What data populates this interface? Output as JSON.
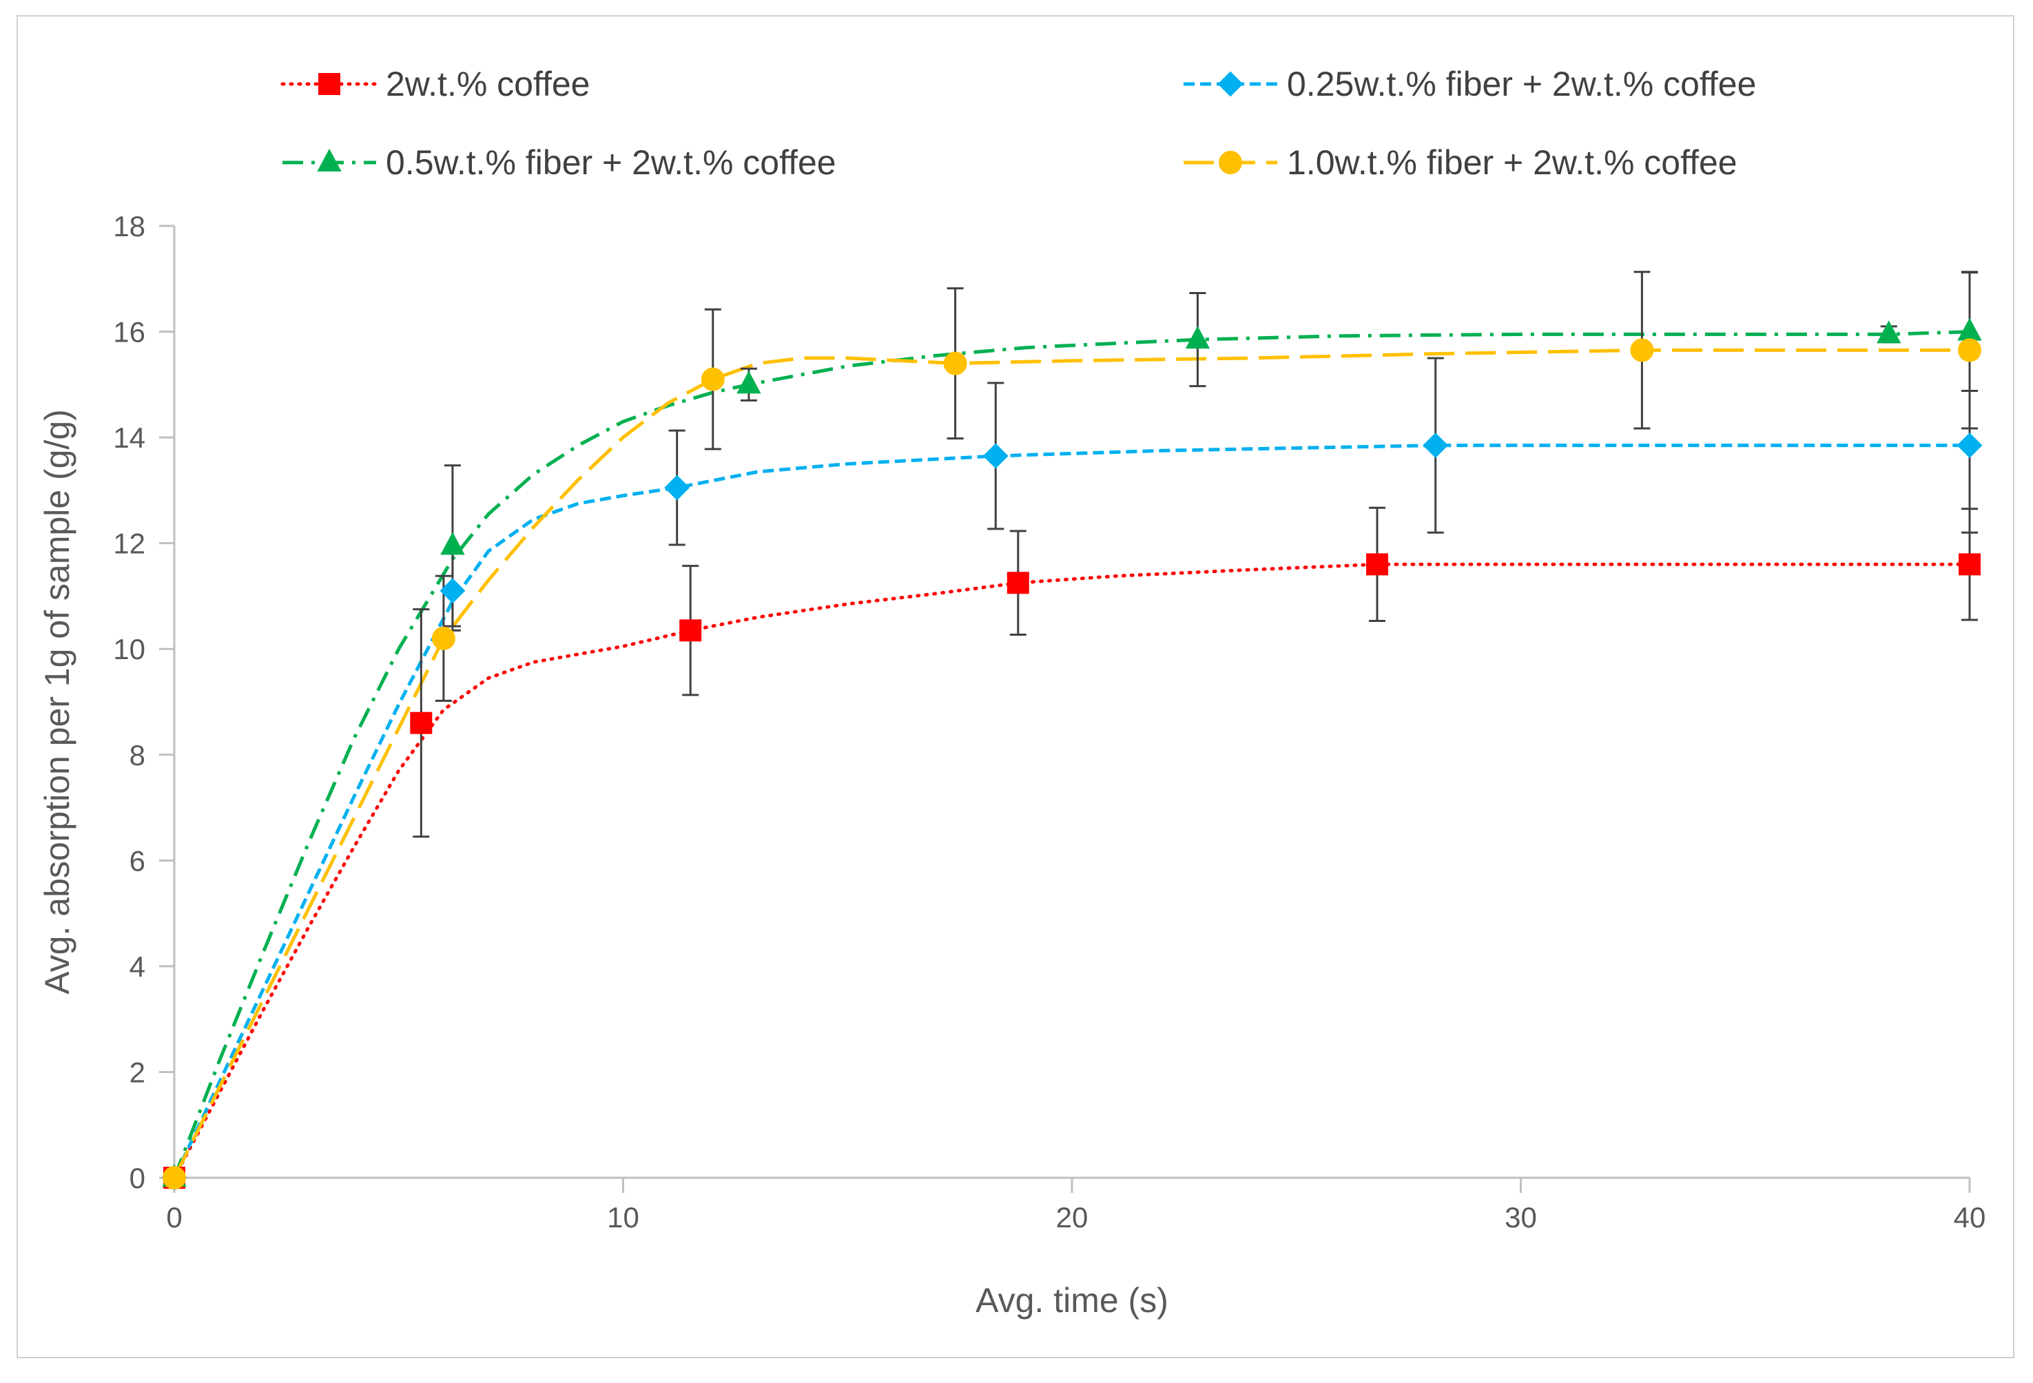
{
  "chart_data": {
    "type": "line",
    "title": "",
    "xlabel": "Avg. time (s)",
    "ylabel": "Avg. absorption per 1g of sample (g/g)",
    "xlim": [
      0,
      40
    ],
    "ylim": [
      0,
      18
    ],
    "xticks": [
      0,
      10,
      20,
      30,
      40
    ],
    "yticks": [
      0,
      2,
      4,
      6,
      8,
      10,
      12,
      14,
      16,
      18
    ],
    "grid": false,
    "legend_position": "top",
    "series": [
      {
        "name": "2w.t.% coffee",
        "color": "#ff0000",
        "line_style": "dotted",
        "marker": "square",
        "points": [
          {
            "x": 0,
            "y": 0
          },
          {
            "x": 5.5,
            "y": 8.6,
            "err": 2.15
          },
          {
            "x": 11.5,
            "y": 10.35,
            "err": 1.22
          },
          {
            "x": 18.8,
            "y": 11.25,
            "err": 0.98
          },
          {
            "x": 26.8,
            "y": 11.6,
            "err": 1.07
          },
          {
            "x": 40,
            "y": 11.6,
            "err": 1.05
          }
        ],
        "curve": [
          {
            "x": 0,
            "y": 0
          },
          {
            "x": 1,
            "y": 1.6
          },
          {
            "x": 2,
            "y": 3.2
          },
          {
            "x": 3,
            "y": 4.75
          },
          {
            "x": 4,
            "y": 6.25
          },
          {
            "x": 5,
            "y": 7.7
          },
          {
            "x": 6,
            "y": 8.85
          },
          {
            "x": 7,
            "y": 9.45
          },
          {
            "x": 8,
            "y": 9.75
          },
          {
            "x": 9,
            "y": 9.9
          },
          {
            "x": 10,
            "y": 10.05
          },
          {
            "x": 11.5,
            "y": 10.35
          },
          {
            "x": 13,
            "y": 10.6
          },
          {
            "x": 15,
            "y": 10.85
          },
          {
            "x": 17,
            "y": 11.05
          },
          {
            "x": 18.8,
            "y": 11.25
          },
          {
            "x": 21,
            "y": 11.38
          },
          {
            "x": 24,
            "y": 11.5
          },
          {
            "x": 26.8,
            "y": 11.6
          },
          {
            "x": 30,
            "y": 11.6
          },
          {
            "x": 35,
            "y": 11.6
          },
          {
            "x": 40,
            "y": 11.6
          }
        ]
      },
      {
        "name": "0.25w.t.% fiber + 2w.t.% coffee",
        "color": "#00b0f0",
        "line_style": "short-dash",
        "marker": "diamond",
        "points": [
          {
            "x": 0,
            "y": 0
          },
          {
            "x": 6.2,
            "y": 11.1,
            "err": 0.75
          },
          {
            "x": 11.2,
            "y": 13.05,
            "err": 1.08
          },
          {
            "x": 18.3,
            "y": 13.65,
            "err": 1.38
          },
          {
            "x": 28.1,
            "y": 13.85,
            "err": 1.65
          },
          {
            "x": 40,
            "y": 13.85,
            "err": 1.65
          }
        ],
        "curve": [
          {
            "x": 0,
            "y": 0
          },
          {
            "x": 1,
            "y": 1.8
          },
          {
            "x": 2,
            "y": 3.6
          },
          {
            "x": 3,
            "y": 5.4
          },
          {
            "x": 4,
            "y": 7.2
          },
          {
            "x": 5,
            "y": 8.95
          },
          {
            "x": 6.2,
            "y": 10.9
          },
          {
            "x": 7,
            "y": 11.85
          },
          {
            "x": 8,
            "y": 12.45
          },
          {
            "x": 9,
            "y": 12.75
          },
          {
            "x": 10,
            "y": 12.9
          },
          {
            "x": 11.2,
            "y": 13.05
          },
          {
            "x": 13,
            "y": 13.35
          },
          {
            "x": 15,
            "y": 13.5
          },
          {
            "x": 18.3,
            "y": 13.65
          },
          {
            "x": 22,
            "y": 13.75
          },
          {
            "x": 25,
            "y": 13.8
          },
          {
            "x": 28.1,
            "y": 13.85
          },
          {
            "x": 32,
            "y": 13.85
          },
          {
            "x": 36,
            "y": 13.85
          },
          {
            "x": 40,
            "y": 13.85
          }
        ]
      },
      {
        "name": "0.5w.t.% fiber + 2w.t.% coffee",
        "color": "#00b050",
        "line_style": "dash-dot",
        "marker": "triangle",
        "points": [
          {
            "x": 0,
            "y": 0
          },
          {
            "x": 6.2,
            "y": 11.95,
            "err": 1.52
          },
          {
            "x": 12.8,
            "y": 15.0,
            "err": 0.3
          },
          {
            "x": 22.8,
            "y": 15.85,
            "err": 0.88
          },
          {
            "x": 38.2,
            "y": 15.95,
            "err": 0.15
          },
          {
            "x": 40,
            "y": 16.0,
            "err": 1.12
          }
        ],
        "curve": [
          {
            "x": 0,
            "y": 0
          },
          {
            "x": 1,
            "y": 2.2
          },
          {
            "x": 2,
            "y": 4.3
          },
          {
            "x": 3,
            "y": 6.35
          },
          {
            "x": 4,
            "y": 8.3
          },
          {
            "x": 5,
            "y": 10.0
          },
          {
            "x": 6.2,
            "y": 11.7
          },
          {
            "x": 7,
            "y": 12.55
          },
          {
            "x": 8,
            "y": 13.3
          },
          {
            "x": 9,
            "y": 13.85
          },
          {
            "x": 10,
            "y": 14.3
          },
          {
            "x": 11,
            "y": 14.6
          },
          {
            "x": 12,
            "y": 14.85
          },
          {
            "x": 12.8,
            "y": 15.0
          },
          {
            "x": 15,
            "y": 15.35
          },
          {
            "x": 17,
            "y": 15.55
          },
          {
            "x": 19,
            "y": 15.7
          },
          {
            "x": 21,
            "y": 15.78
          },
          {
            "x": 22.8,
            "y": 15.85
          },
          {
            "x": 26,
            "y": 15.92
          },
          {
            "x": 30,
            "y": 15.95
          },
          {
            "x": 34,
            "y": 15.95
          },
          {
            "x": 38.2,
            "y": 15.95
          },
          {
            "x": 40,
            "y": 16.0
          }
        ]
      },
      {
        "name": "1.0w.t.% fiber + 2w.t.% coffee",
        "color": "#ffc000",
        "line_style": "long-dash",
        "marker": "circle",
        "points": [
          {
            "x": 0,
            "y": 0
          },
          {
            "x": 6.0,
            "y": 10.2,
            "err": 1.18
          },
          {
            "x": 12.0,
            "y": 15.1,
            "err": 1.32
          },
          {
            "x": 17.4,
            "y": 15.4,
            "err": 1.42
          },
          {
            "x": 32.7,
            "y": 15.65,
            "err": 1.48
          },
          {
            "x": 40,
            "y": 15.65,
            "err": 1.48
          }
        ],
        "curve": [
          {
            "x": 0,
            "y": 0
          },
          {
            "x": 1,
            "y": 1.7
          },
          {
            "x": 2,
            "y": 3.4
          },
          {
            "x": 3,
            "y": 5.1
          },
          {
            "x": 4,
            "y": 6.8
          },
          {
            "x": 5,
            "y": 8.5
          },
          {
            "x": 6,
            "y": 10.2
          },
          {
            "x": 7,
            "y": 11.3
          },
          {
            "x": 8,
            "y": 12.3
          },
          {
            "x": 9,
            "y": 13.2
          },
          {
            "x": 10,
            "y": 14.0
          },
          {
            "x": 11,
            "y": 14.65
          },
          {
            "x": 12,
            "y": 15.1
          },
          {
            "x": 13,
            "y": 15.4
          },
          {
            "x": 14,
            "y": 15.5
          },
          {
            "x": 15,
            "y": 15.5
          },
          {
            "x": 17.4,
            "y": 15.4
          },
          {
            "x": 20,
            "y": 15.45
          },
          {
            "x": 24,
            "y": 15.5
          },
          {
            "x": 28,
            "y": 15.58
          },
          {
            "x": 32.7,
            "y": 15.65
          },
          {
            "x": 36,
            "y": 15.65
          },
          {
            "x": 40,
            "y": 15.65
          }
        ]
      }
    ]
  }
}
